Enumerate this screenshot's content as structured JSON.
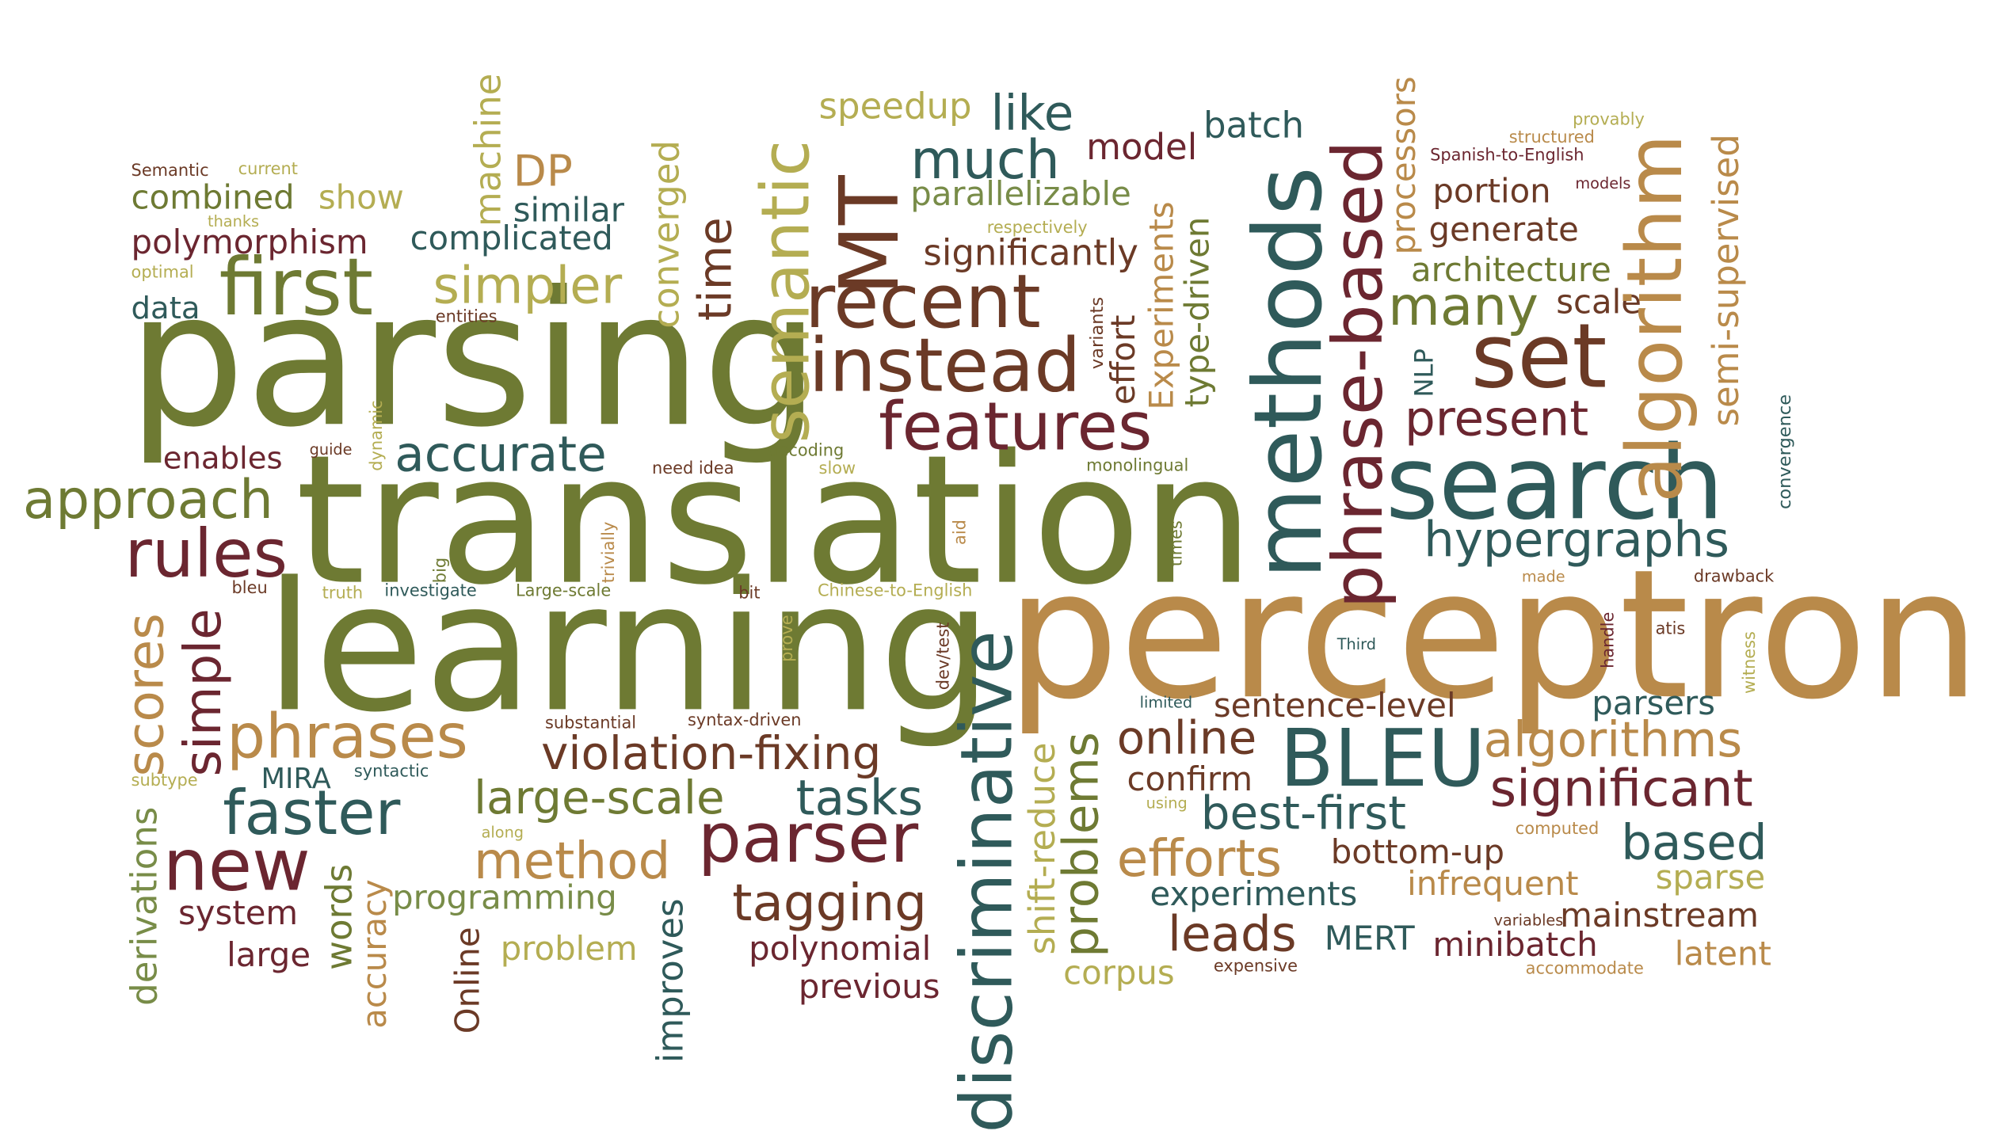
{
  "palette": {
    "olive": "#6e7a33",
    "brown": "#6b3a26",
    "teal": "#2f5a5a",
    "tan": "#b98a4a",
    "khaki": "#b4ad52",
    "maroon": "#6b2630",
    "sage": "#788c48"
  },
  "words": {
    "parsing": "parsing",
    "translation": "translation",
    "learning": "learning",
    "perceptron": "perceptron",
    "search": "search",
    "methods": "methods",
    "phrase_based": "phrase-based",
    "algorithm": "algorithm",
    "set": "set",
    "first": "first",
    "recent": "recent",
    "instead": "instead",
    "semantic": "semantic",
    "mt": "MT",
    "features": "features",
    "discriminative": "discriminative",
    "bleu_upper": "BLEU",
    "parser": "parser",
    "new": "new",
    "rules": "rules",
    "approach": "approach",
    "faster": "faster",
    "phrases": "phrases",
    "accurate": "accurate",
    "simpler": "simpler",
    "much": "much",
    "like": "like",
    "speedup": "speedup",
    "model": "model",
    "batch": "batch",
    "many": "many",
    "present": "present",
    "hypergraphs": "hypergraphs",
    "tasks": "tasks",
    "tagging": "tagging",
    "method": "method",
    "large_scale": "large-scale",
    "violation_fixing": "violation-fixing",
    "online_lower": "online",
    "algorithms": "algorithms",
    "significant": "significant",
    "based": "based",
    "efforts": "efforts",
    "best_first": "best-first",
    "parsers": "parsers",
    "sentence_level": "sentence-level",
    "confirm": "confirm",
    "bottom_up": "bottom-up",
    "infrequent": "infrequent",
    "sparse": "sparse",
    "experiments_lower": "experiments",
    "leads": "leads",
    "mert": "MERT",
    "mainstream": "mainstream",
    "minibatch": "minibatch",
    "latent": "latent",
    "corpus": "corpus",
    "polynomial": "polynomial",
    "previous": "previous",
    "problem": "problem",
    "programming": "programming",
    "system": "system",
    "large": "large",
    "mira": "MIRA",
    "simple": "simple",
    "scores": "scores",
    "derivations": "derivations",
    "words": "words",
    "accuracy": "accuracy",
    "online_upper": "Online",
    "improves": "improves",
    "shift_reduce": "shift-reduce",
    "problems": "problems",
    "combined": "combined",
    "show": "show",
    "polymorphism": "polymorphism",
    "complicated": "complicated",
    "similar": "similar",
    "dp": "DP",
    "machine": "machine",
    "data": "data",
    "enables": "enables",
    "converged": "converged",
    "time": "time",
    "parallelizable": "parallelizable",
    "significantly": "significantly",
    "effort": "effort",
    "experiments_upper": "Experiments",
    "type_driven": "type-driven",
    "processors": "processors",
    "portion": "portion",
    "generate": "generate",
    "architecture": "architecture",
    "scale": "scale",
    "semi_supervised": "semi-supervised",
    "nlp": "NLP",
    "semantic_upper": "Semantic",
    "current": "current",
    "thanks": "thanks",
    "optimal": "optimal",
    "entities": "entities",
    "respectively": "respectively",
    "variants": "variants",
    "provably": "provably",
    "structured": "structured",
    "spanish_to_english": "Spanish-to-English",
    "models": "models",
    "convergence": "convergence",
    "guide": "guide",
    "dynamic": "dynamic",
    "decoding": "decoding",
    "slow": "slow",
    "need_idea": "need idea",
    "monolingual": "monolingual",
    "times": "times",
    "aid": "aid",
    "trivially": "trivially",
    "big": "big",
    "bleu_lower": "bleu",
    "truth": "truth",
    "investigate": "investigate",
    "large_scale_upper": "Large-scale",
    "bit": "bit",
    "chinese_to_english": "Chinese-to-English",
    "made": "made",
    "drawback": "drawback",
    "third": "Third",
    "atis": "atis",
    "witness": "witness",
    "handle": "handle",
    "prove": "prove",
    "dev_test": "dev/test",
    "substantial": "substantial",
    "syntax_driven": "syntax-driven",
    "syntactic": "syntactic",
    "subtype": "subtype",
    "along": "along",
    "limited": "limited",
    "using": "using",
    "computed": "computed",
    "variables": "variables",
    "expensive": "expensive",
    "accommodate": "accommodate"
  }
}
